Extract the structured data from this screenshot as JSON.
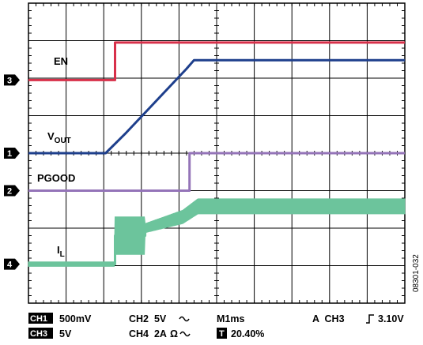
{
  "chart_data": {
    "type": "line",
    "title": "",
    "grid": true,
    "divisions": {
      "x": 10,
      "y": 8
    },
    "series": [
      {
        "name": "EN",
        "channel_marker": "3",
        "color": "#d8304a",
        "points": [
          [
            0,
            5.95
          ],
          [
            2.3,
            5.95
          ],
          [
            2.3,
            6.95
          ],
          [
            10,
            6.95
          ]
        ]
      },
      {
        "name": "V",
        "subscript": "OUT",
        "channel_marker": "1",
        "color": "#1e3f8c",
        "points": [
          [
            0,
            4.0
          ],
          [
            2.05,
            4.0
          ],
          [
            2.6,
            4.55
          ],
          [
            4.2,
            6.25
          ],
          [
            4.4,
            6.48
          ],
          [
            10,
            6.48
          ]
        ]
      },
      {
        "name": "PGOOD",
        "channel_marker": "2",
        "color": "#9474b8",
        "points": [
          [
            0,
            3.0
          ],
          [
            4.28,
            3.0
          ],
          [
            4.28,
            4.0
          ],
          [
            10,
            4.0
          ]
        ]
      },
      {
        "name": "I",
        "subscript": "L",
        "channel_marker": "4",
        "color": "#6cc49c",
        "points": [
          [
            0,
            1.04
          ],
          [
            2.3,
            1.04
          ],
          [
            2.3,
            1.8
          ],
          [
            3.1,
            1.8
          ],
          [
            3.1,
            2.0
          ],
          [
            4.1,
            2.3
          ],
          [
            4.5,
            2.58
          ],
          [
            10,
            2.58
          ]
        ],
        "band": [
          [
            0,
            0.06
          ],
          [
            2.3,
            0.06
          ],
          [
            2.3,
            0.5
          ],
          [
            3.1,
            0.5
          ],
          [
            3.1,
            0.12
          ],
          [
            4.5,
            0.2
          ],
          [
            10,
            0.2
          ]
        ]
      }
    ],
    "settings": {
      "ch1_tag": "CH1",
      "ch1": "500mV",
      "ch2": "CH2  5V",
      "ch3_tag": "CH3",
      "ch3": "5V",
      "ch4": "CH4  2A",
      "ohm": "Ω",
      "timebase": "M1ms",
      "trigger_prefix": "A  CH3",
      "trigger_level": "3.10V",
      "trigger_tag": "T",
      "trigger_pos": "20.40%",
      "figure_id": "08301-032"
    }
  }
}
